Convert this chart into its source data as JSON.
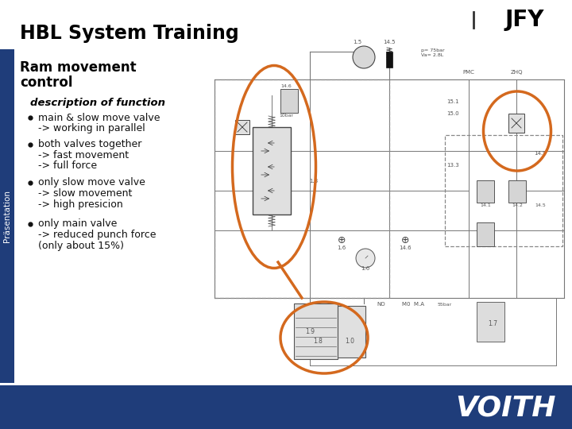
{
  "title": "HBL System Training",
  "subtitle_line1": "Ram movement",
  "subtitle_line2": "control",
  "section_header": "description of function",
  "bullets": [
    [
      "main & slow move valve",
      "-> working in parallel"
    ],
    [
      "both valves together",
      "-> fast movement",
      "-> full force"
    ],
    [
      "only slow move valve",
      "-> slow movement",
      "-> high presicion"
    ],
    [
      "only main valve",
      "-> reduced punch force",
      "(only about 15%)"
    ]
  ],
  "sidebar_text": "Präsentation",
  "brand_text": "VOITH",
  "jfy_text": "JFY",
  "title_color": "#000000",
  "brand_bg": "#1f3d7a",
  "brand_text_color": "#ffffff",
  "sidebar_bg": "#1f3d7a",
  "sidebar_text_color": "#ffffff",
  "orange_color": "#d4691e",
  "background_color": "#ffffff",
  "line_color": "#888888",
  "dark_line_color": "#444444",
  "schematic_line_color": "#777777"
}
